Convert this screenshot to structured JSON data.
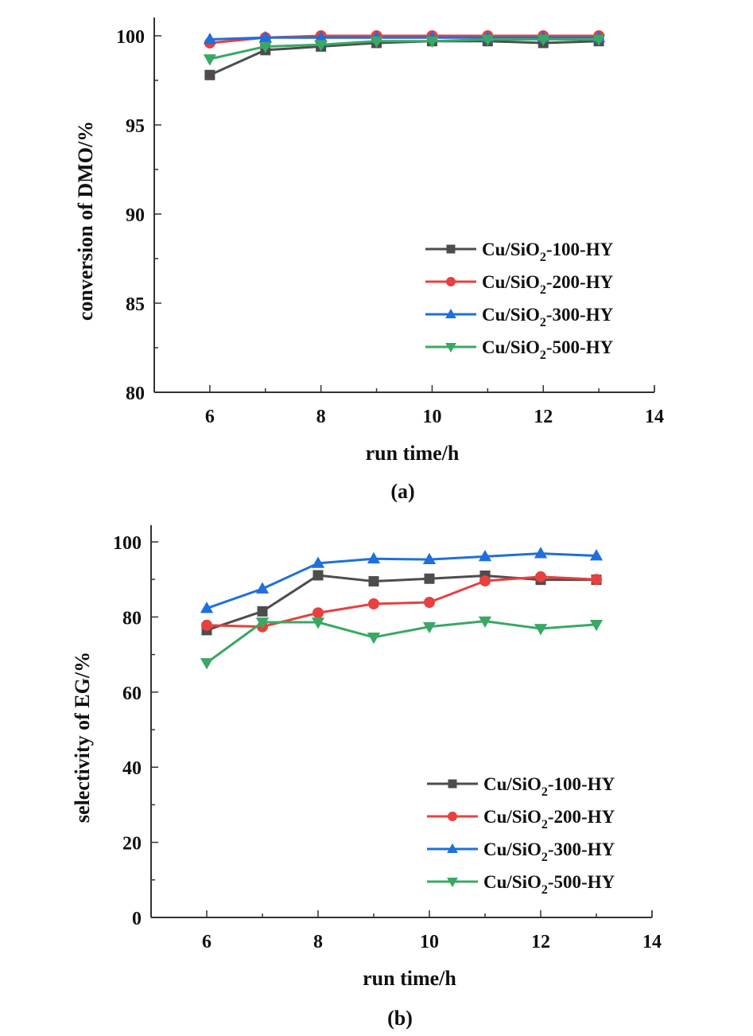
{
  "chart_data": [
    {
      "id": "a",
      "type": "line",
      "panel_label": "(a)",
      "title": "",
      "xlabel": "run time/h",
      "ylabel": "conversion of DMO/%",
      "xlim": [
        5,
        14
      ],
      "ylim": [
        80,
        100.5
      ],
      "xticks": [
        6,
        8,
        10,
        12,
        14
      ],
      "xticks_minor": [
        7,
        9,
        11,
        13
      ],
      "yticks": [
        80,
        85,
        90,
        95,
        100
      ],
      "yticks_minor": [
        82.5,
        87.5,
        92.5,
        97.5
      ],
      "grid": false,
      "legend_position": "center-right",
      "x": [
        6,
        7,
        8,
        9,
        10,
        11,
        12,
        13
      ],
      "series": [
        {
          "name": "Cu/SiO2-100-HY",
          "label_main": "Cu/SiO",
          "label_sub": "2",
          "label_tail": "-100-HY",
          "color": "#4d4d4d",
          "marker": "square",
          "values": [
            97.8,
            99.2,
            99.4,
            99.6,
            99.7,
            99.7,
            99.6,
            99.7
          ]
        },
        {
          "name": "Cu/SiO2-200-HY",
          "label_main": "Cu/SiO",
          "label_sub": "2",
          "label_tail": "-200-HY",
          "color": "#e8403f",
          "marker": "circle",
          "values": [
            99.6,
            99.9,
            100.0,
            100.0,
            100.0,
            100.0,
            100.0,
            100.0
          ]
        },
        {
          "name": "Cu/SiO2-300-HY",
          "label_main": "Cu/SiO",
          "label_sub": "2",
          "label_tail": "-300-HY",
          "color": "#1f6fdc",
          "marker": "triangle-up",
          "values": [
            99.8,
            99.9,
            99.9,
            99.9,
            99.9,
            99.9,
            99.9,
            99.9
          ]
        },
        {
          "name": "Cu/SiO2-500-HY",
          "label_main": "Cu/SiO",
          "label_sub": "2",
          "label_tail": "-500-HY",
          "color": "#3aa865",
          "marker": "triangle-down",
          "values": [
            98.7,
            99.4,
            99.5,
            99.7,
            99.7,
            99.8,
            99.8,
            99.8
          ]
        }
      ]
    },
    {
      "id": "b",
      "type": "line",
      "panel_label": "(b)",
      "title": "",
      "xlabel": "run time/h",
      "ylabel": "selectivity of EG/%",
      "xlim": [
        5,
        14
      ],
      "ylim": [
        0,
        100
      ],
      "xticks": [
        6,
        8,
        10,
        12,
        14
      ],
      "xticks_minor": [
        7,
        9,
        11,
        13
      ],
      "yticks": [
        0,
        20,
        40,
        60,
        80,
        100
      ],
      "yticks_minor": [
        10,
        30,
        50,
        70,
        90
      ],
      "grid": false,
      "legend_position": "lower-right",
      "x": [
        6,
        7,
        8,
        9,
        10,
        11,
        12,
        13
      ],
      "series": [
        {
          "name": "Cu/SiO2-100-HY",
          "label_main": "Cu/SiO",
          "label_sub": "2",
          "label_tail": "-100-HY",
          "color": "#4d4d4d",
          "marker": "square",
          "values": [
            76.5,
            81.5,
            91.1,
            89.5,
            90.2,
            91.0,
            89.9,
            89.9
          ]
        },
        {
          "name": "Cu/SiO2-200-HY",
          "label_main": "Cu/SiO",
          "label_sub": "2",
          "label_tail": "-200-HY",
          "color": "#e8403f",
          "marker": "circle",
          "values": [
            77.8,
            77.4,
            81.1,
            83.5,
            83.9,
            89.6,
            90.7,
            90.0
          ]
        },
        {
          "name": "Cu/SiO2-300-HY",
          "label_main": "Cu/SiO",
          "label_sub": "2",
          "label_tail": "-300-HY",
          "color": "#1f6fdc",
          "marker": "triangle-up",
          "values": [
            82.3,
            87.5,
            94.3,
            95.5,
            95.3,
            96.1,
            96.9,
            96.3
          ]
        },
        {
          "name": "Cu/SiO2-500-HY",
          "label_main": "Cu/SiO",
          "label_sub": "2",
          "label_tail": "-500-HY",
          "color": "#3aa865",
          "marker": "triangle-down",
          "values": [
            67.8,
            78.6,
            78.6,
            74.6,
            77.4,
            78.9,
            76.9,
            78.0
          ]
        }
      ]
    }
  ]
}
